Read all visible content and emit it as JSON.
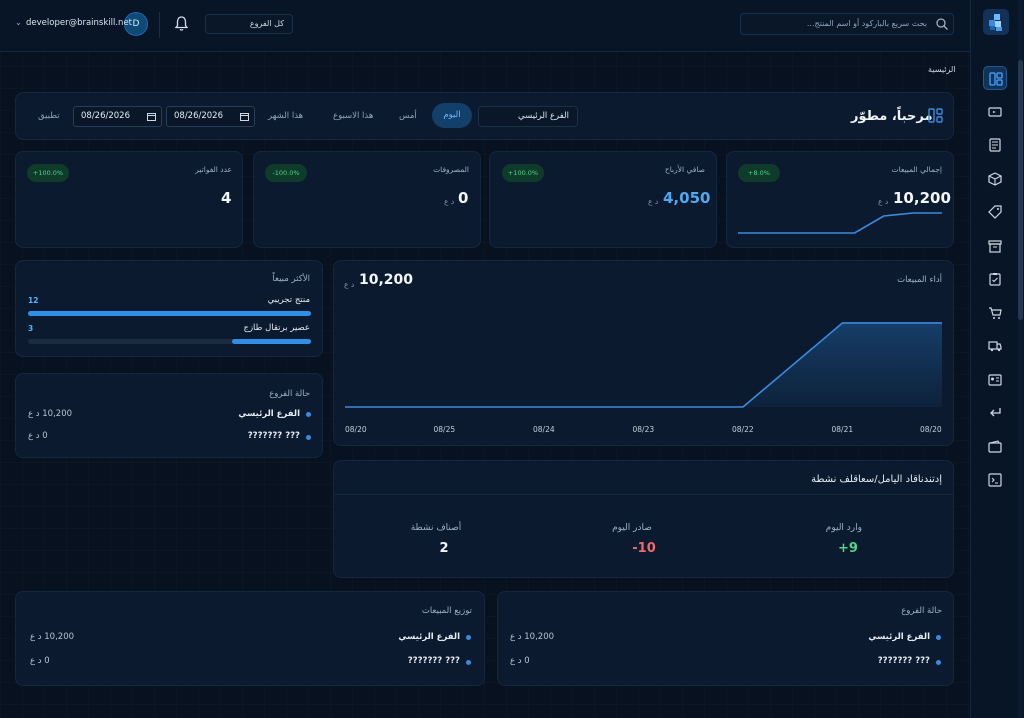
{
  "header": {
    "search_placeholder": "بحث سريع بالباركود أو اسم المنتج...",
    "branch_select": "كل الفروع",
    "user_initial": "D",
    "user_email": "developer@brainskill.net"
  },
  "breadcrumb": "الرئيسية",
  "welcome": {
    "title": "مرحباً، مطوّر",
    "branch_filter": "الفرع الرئيسي",
    "periods": [
      "اليوم",
      "أمس",
      "هذا الاسبوع",
      "هذا الشهر"
    ],
    "active_period": "اليوم",
    "date_from": "08/26/2026",
    "date_to": "08/26/2026",
    "apply_label": "تطبيق"
  },
  "stats": [
    {
      "label": "إجمالي المبيعات",
      "value": "10,200",
      "unit": "د ع",
      "badge": "+8.0%",
      "sparkline": [
        0,
        0,
        0,
        0,
        0,
        0.85,
        1,
        1
      ]
    },
    {
      "label": "صافي الأرباح",
      "value": "4,050",
      "unit": "د ع",
      "badge": "+100.0%"
    },
    {
      "label": "المصروفات",
      "value": "0",
      "unit": "د ع",
      "badge": "-100.0%"
    },
    {
      "label": "عدد الفواتير",
      "value": "4",
      "badge": "+100.0%"
    }
  ],
  "sales_performance": {
    "title": "أداء المبيعات",
    "total": "10,200",
    "unit": "د ع"
  },
  "chart_data": {
    "type": "area",
    "title": "أداء المبيعات",
    "x": [
      "08/20",
      "08/21",
      "08/22",
      "08/23",
      "08/24",
      "08/25",
      "08/20"
    ],
    "x_display_ltr": [
      "08/20",
      "08/25",
      "08/24",
      "08/23",
      "08/22",
      "08/21",
      "08/20"
    ],
    "values_ltr": [
      0,
      0,
      0,
      0,
      0,
      10200,
      10200
    ],
    "ylim": [
      0,
      12000
    ],
    "grid": false,
    "color": "#3a8be0"
  },
  "top_selling": {
    "title": "الأكثر مبيعاً",
    "items": [
      {
        "name": "منتج تجريبي",
        "count": "12",
        "share": 1.0
      },
      {
        "name": "عصير برتقال طازج",
        "count": "3",
        "share": 0.28
      }
    ]
  },
  "branch_status_left": {
    "title": "حالة الفروع",
    "rows": [
      {
        "name": "الفرع الرئيسي",
        "value": "10,200 د ع"
      },
      {
        "name": "??? ???????",
        "value": "0 د ع"
      }
    ]
  },
  "inventory_activity": {
    "title": "إدتندناقاد اليامل/سعاقلف نشطة",
    "items": [
      {
        "label": "وارد اليوم",
        "value": "+9",
        "color": "#4fd48a"
      },
      {
        "label": "صادر اليوم",
        "value": "-10",
        "color": "#f06a6a"
      },
      {
        "label": "أصناف نشطة",
        "value": "2",
        "color": "#f1f5fa"
      }
    ]
  },
  "sales_distribution": {
    "title": "توزيع المبيعات",
    "rows": [
      {
        "name": "الفرع الرئيسي",
        "value": "10,200 د ع"
      },
      {
        "name": "??? ???????",
        "value": "0 د ع"
      }
    ]
  },
  "branch_status_bottom": {
    "title": "حالة الفروع",
    "rows": [
      {
        "name": "الفرع الرئيسي",
        "value": "10,200 د ع"
      },
      {
        "name": "??? ???????",
        "value": "0 د ع"
      }
    ]
  },
  "sidebar": {
    "icons": [
      "dashboard-icon",
      "pos-icon",
      "invoice-icon",
      "box-icon",
      "tag-icon",
      "archive-icon",
      "clipboard-icon",
      "cart-icon",
      "truck-icon",
      "id-card-icon",
      "return-icon",
      "wallet-icon",
      "reports-icon"
    ]
  },
  "colors": {
    "accent": "#2f8fe6",
    "positive": "#4fd48a",
    "negative": "#f06a6a",
    "background": "#07111f",
    "card": "#0b1a2e"
  }
}
